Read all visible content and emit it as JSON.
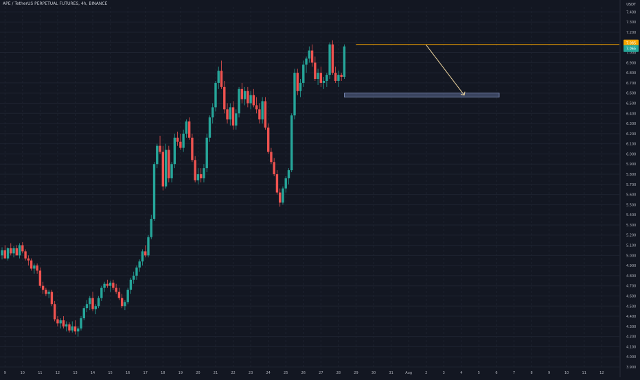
{
  "header": {
    "symbol_line": "APE / TetherUS PERPETUAL FUTURES, 4h, BINANCE",
    "unit": "USDT"
  },
  "colors": {
    "background": "#131722",
    "grid": "#1e2330",
    "up": "#26a69a",
    "down": "#ef5350",
    "resistance": "#f7a600",
    "support_zone": "#5b6a92",
    "arrow": "#f0d7a0",
    "axis_text": "#b2b5be"
  },
  "chart_data": {
    "type": "candlestick",
    "title": "APE / TetherUS PERPETUAL FUTURES, 4h, BINANCE",
    "ylabel": "USDT",
    "ylim": [
      3.9,
      7.45
    ],
    "y_ticks": [
      "7.400",
      "7.300",
      "7.200",
      "7.100",
      "7.000",
      "6.900",
      "6.800",
      "6.700",
      "6.600",
      "6.500",
      "6.400",
      "6.300",
      "6.200",
      "6.100",
      "6.000",
      "5.900",
      "5.800",
      "5.700",
      "5.600",
      "5.500",
      "5.400",
      "5.300",
      "5.200",
      "5.100",
      "5.000",
      "4.900",
      "4.800",
      "4.700",
      "4.600",
      "4.500",
      "4.400",
      "4.300",
      "4.200",
      "4.100",
      "4.000",
      "3.900"
    ],
    "x_ticks": [
      {
        "label": "9",
        "i": 1
      },
      {
        "label": "10",
        "i": 7
      },
      {
        "label": "11",
        "i": 13
      },
      {
        "label": "12",
        "i": 19
      },
      {
        "label": "13",
        "i": 25
      },
      {
        "label": "14",
        "i": 31
      },
      {
        "label": "15",
        "i": 37
      },
      {
        "label": "16",
        "i": 43
      },
      {
        "label": "17",
        "i": 49
      },
      {
        "label": "18",
        "i": 55
      },
      {
        "label": "19",
        "i": 61
      },
      {
        "label": "20",
        "i": 67
      },
      {
        "label": "21",
        "i": 73
      },
      {
        "label": "22",
        "i": 79
      },
      {
        "label": "23",
        "i": 85
      },
      {
        "label": "24",
        "i": 91
      },
      {
        "label": "25",
        "i": 97
      },
      {
        "label": "26",
        "i": 103
      },
      {
        "label": "27",
        "i": 109
      },
      {
        "label": "28",
        "i": 115
      },
      {
        "label": "29",
        "i": 121
      },
      {
        "label": "30",
        "i": 127
      },
      {
        "label": "31",
        "i": 133
      },
      {
        "label": "Aug",
        "i": 139
      },
      {
        "label": "2",
        "i": 145
      },
      {
        "label": "3",
        "i": 151
      },
      {
        "label": "4",
        "i": 157
      },
      {
        "label": "5",
        "i": 163
      },
      {
        "label": "6",
        "i": 169
      },
      {
        "label": "7",
        "i": 175
      },
      {
        "label": "8",
        "i": 181
      },
      {
        "label": "9",
        "i": 187
      },
      {
        "label": "10",
        "i": 193
      },
      {
        "label": "11",
        "i": 199
      },
      {
        "label": "12",
        "i": 205
      }
    ],
    "candles": [
      [
        5.0,
        5.08,
        4.96,
        5.05
      ],
      [
        5.05,
        5.1,
        4.98,
        4.97
      ],
      [
        4.97,
        5.08,
        4.95,
        5.07
      ],
      [
        5.07,
        5.12,
        5.0,
        5.02
      ],
      [
        5.02,
        5.09,
        4.98,
        5.07
      ],
      [
        5.07,
        5.1,
        5.0,
        5.0
      ],
      [
        5.0,
        5.12,
        4.97,
        5.1
      ],
      [
        5.1,
        5.13,
        5.02,
        5.04
      ],
      [
        5.04,
        5.06,
        4.95,
        4.97
      ],
      [
        4.97,
        5.0,
        4.9,
        4.95
      ],
      [
        4.95,
        4.97,
        4.85,
        4.87
      ],
      [
        4.87,
        4.92,
        4.82,
        4.9
      ],
      [
        4.9,
        4.92,
        4.82,
        4.85
      ],
      [
        4.85,
        4.88,
        4.68,
        4.7
      ],
      [
        4.7,
        4.74,
        4.62,
        4.66
      ],
      [
        4.66,
        4.68,
        4.6,
        4.62
      ],
      [
        4.62,
        4.66,
        4.58,
        4.64
      ],
      [
        4.64,
        4.66,
        4.5,
        4.52
      ],
      [
        4.52,
        4.55,
        4.35,
        4.37
      ],
      [
        4.37,
        4.4,
        4.3,
        4.33
      ],
      [
        4.33,
        4.38,
        4.28,
        4.36
      ],
      [
        4.36,
        4.4,
        4.28,
        4.3
      ],
      [
        4.3,
        4.35,
        4.25,
        4.32
      ],
      [
        4.32,
        4.34,
        4.24,
        4.26
      ],
      [
        4.26,
        4.35,
        4.24,
        4.3
      ],
      [
        4.3,
        4.36,
        4.22,
        4.25
      ],
      [
        4.25,
        4.3,
        4.2,
        4.28
      ],
      [
        4.28,
        4.4,
        4.26,
        4.38
      ],
      [
        4.38,
        4.5,
        4.36,
        4.48
      ],
      [
        4.48,
        4.56,
        4.44,
        4.52
      ],
      [
        4.52,
        4.6,
        4.46,
        4.58
      ],
      [
        4.58,
        4.64,
        4.45,
        4.47
      ],
      [
        4.47,
        4.52,
        4.42,
        4.5
      ],
      [
        4.5,
        4.6,
        4.48,
        4.58
      ],
      [
        4.58,
        4.7,
        4.55,
        4.68
      ],
      [
        4.68,
        4.74,
        4.64,
        4.72
      ],
      [
        4.72,
        4.76,
        4.68,
        4.7
      ],
      [
        4.7,
        4.75,
        4.64,
        4.73
      ],
      [
        4.73,
        4.76,
        4.66,
        4.68
      ],
      [
        4.68,
        4.72,
        4.62,
        4.64
      ],
      [
        4.64,
        4.68,
        4.56,
        4.58
      ],
      [
        4.58,
        4.62,
        4.48,
        4.5
      ],
      [
        4.5,
        4.56,
        4.46,
        4.54
      ],
      [
        4.54,
        4.68,
        4.52,
        4.66
      ],
      [
        4.66,
        4.78,
        4.62,
        4.76
      ],
      [
        4.76,
        4.84,
        4.72,
        4.8
      ],
      [
        4.8,
        4.9,
        4.76,
        4.88
      ],
      [
        4.88,
        4.96,
        4.84,
        4.94
      ],
      [
        4.94,
        5.06,
        4.9,
        5.04
      ],
      [
        5.04,
        5.1,
        4.98,
        5.0
      ],
      [
        5.0,
        5.2,
        4.98,
        5.18
      ],
      [
        5.18,
        5.4,
        5.16,
        5.36
      ],
      [
        5.36,
        5.92,
        5.34,
        5.9
      ],
      [
        5.9,
        6.1,
        5.86,
        6.08
      ],
      [
        6.08,
        6.18,
        6.0,
        6.02
      ],
      [
        6.02,
        6.08,
        5.64,
        5.68
      ],
      [
        5.68,
        6.1,
        5.66,
        6.04
      ],
      [
        6.04,
        6.08,
        5.72,
        5.76
      ],
      [
        5.76,
        5.92,
        5.72,
        5.9
      ],
      [
        5.9,
        6.2,
        5.86,
        6.16
      ],
      [
        6.16,
        6.22,
        6.08,
        6.12
      ],
      [
        6.12,
        6.2,
        6.04,
        6.06
      ],
      [
        6.06,
        6.24,
        6.02,
        6.2
      ],
      [
        6.2,
        6.34,
        6.16,
        6.32
      ],
      [
        6.32,
        6.36,
        6.14,
        6.16
      ],
      [
        6.16,
        6.2,
        5.92,
        5.94
      ],
      [
        5.94,
        5.98,
        5.72,
        5.74
      ],
      [
        5.74,
        5.86,
        5.7,
        5.8
      ],
      [
        5.8,
        5.86,
        5.72,
        5.76
      ],
      [
        5.76,
        5.9,
        5.72,
        5.86
      ],
      [
        5.86,
        6.2,
        5.82,
        6.16
      ],
      [
        6.16,
        6.38,
        6.12,
        6.36
      ],
      [
        6.36,
        6.5,
        6.3,
        6.46
      ],
      [
        6.46,
        6.72,
        6.42,
        6.7
      ],
      [
        6.7,
        6.86,
        6.64,
        6.82
      ],
      [
        6.82,
        6.92,
        6.64,
        6.66
      ],
      [
        6.66,
        6.72,
        6.4,
        6.44
      ],
      [
        6.44,
        6.5,
        6.3,
        6.34
      ],
      [
        6.34,
        6.5,
        6.28,
        6.46
      ],
      [
        6.46,
        6.52,
        6.24,
        6.28
      ],
      [
        6.28,
        6.44,
        6.24,
        6.4
      ],
      [
        6.4,
        6.66,
        6.36,
        6.64
      ],
      [
        6.64,
        6.7,
        6.5,
        6.54
      ],
      [
        6.54,
        6.66,
        6.48,
        6.62
      ],
      [
        6.62,
        6.66,
        6.46,
        6.5
      ],
      [
        6.5,
        6.62,
        6.44,
        6.58
      ],
      [
        6.58,
        6.64,
        6.46,
        6.48
      ],
      [
        6.48,
        6.56,
        6.4,
        6.44
      ],
      [
        6.44,
        6.5,
        6.3,
        6.34
      ],
      [
        6.34,
        6.56,
        6.3,
        6.52
      ],
      [
        6.52,
        6.56,
        6.24,
        6.26
      ],
      [
        6.26,
        6.3,
        6.0,
        6.02
      ],
      [
        6.02,
        6.06,
        5.9,
        5.92
      ],
      [
        5.92,
        5.96,
        5.78,
        5.8
      ],
      [
        5.8,
        5.84,
        5.6,
        5.62
      ],
      [
        5.62,
        5.66,
        5.48,
        5.52
      ],
      [
        5.52,
        5.68,
        5.5,
        5.66
      ],
      [
        5.66,
        5.78,
        5.62,
        5.76
      ],
      [
        5.76,
        5.86,
        5.7,
        5.84
      ],
      [
        5.84,
        6.4,
        5.82,
        6.38
      ],
      [
        6.38,
        6.84,
        6.34,
        6.8
      ],
      [
        6.8,
        6.84,
        6.58,
        6.62
      ],
      [
        6.62,
        6.74,
        6.56,
        6.7
      ],
      [
        6.7,
        6.92,
        6.66,
        6.88
      ],
      [
        6.88,
        6.96,
        6.8,
        6.94
      ],
      [
        6.94,
        7.06,
        6.9,
        7.02
      ],
      [
        7.02,
        7.08,
        6.86,
        6.9
      ],
      [
        6.9,
        6.96,
        6.72,
        6.74
      ],
      [
        6.74,
        6.84,
        6.68,
        6.8
      ],
      [
        6.8,
        6.86,
        6.66,
        6.7
      ],
      [
        6.7,
        6.76,
        6.64,
        6.72
      ],
      [
        6.72,
        6.8,
        6.66,
        6.78
      ],
      [
        6.78,
        7.1,
        6.74,
        7.08
      ],
      [
        7.08,
        7.12,
        6.78,
        6.8
      ],
      [
        6.8,
        6.86,
        6.7,
        6.72
      ],
      [
        6.72,
        6.82,
        6.66,
        6.78
      ],
      [
        6.78,
        6.8,
        6.72,
        6.76
      ],
      [
        6.76,
        7.08,
        6.74,
        7.06
      ]
    ],
    "annotations": {
      "resistance_level": 7.08,
      "support_zone": [
        6.56,
        6.6
      ],
      "arrow_to_price": 6.58
    },
    "price_labels": [
      {
        "text": "7.085",
        "kind": "resistance"
      },
      {
        "text": "7.065",
        "kind": "last"
      }
    ]
  }
}
